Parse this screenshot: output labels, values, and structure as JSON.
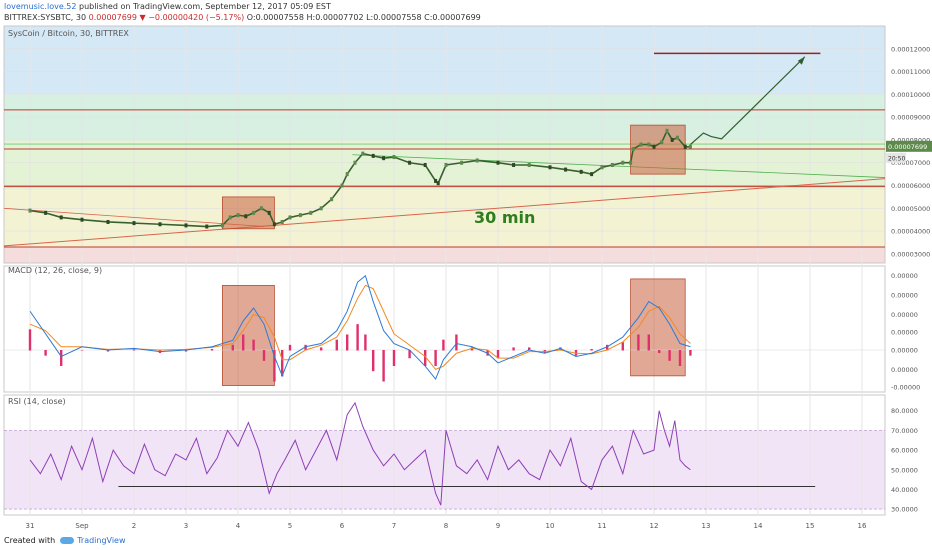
{
  "header": {
    "user": "lovemusic.love.52",
    "published_text": "published on TradingView.com, September 12, 2017 05:09 EST",
    "symbol": "BITTREX:SYSBTC, 30",
    "last": "0.00007699",
    "change": "▼ −0.00000420 (−5.17%)",
    "ohlc": "O:0.00007558 H:0.00007702 L:0.00007558 C:0.00007699"
  },
  "footer": {
    "created_with": "Created with",
    "brand": "TradingView"
  },
  "colors": {
    "up_candle": "#5b8a4a",
    "price_line": "#3a5f2f",
    "macd": "#2e7bd6",
    "signal": "#f08a24",
    "hist": "#e0306c",
    "rsi": "#8e3fb5",
    "box": "#c9613f",
    "level": "#c0392b"
  },
  "chart_data": [
    {
      "type": "line",
      "title": "SysCoin / Bitcoin, 30, BITTREX",
      "annotation": "30 min",
      "x_ticks": [
        "31",
        "Sep",
        "2",
        "3",
        "4",
        "5",
        "6",
        "7",
        "8",
        "9",
        "10",
        "11",
        "12",
        "13",
        "14",
        "15",
        "16"
      ],
      "y_ticks": [
        "0.00012000",
        "0.00011000",
        "0.00010000",
        "0.00009000",
        "0.00008000",
        "0.00007000",
        "0.00006000",
        "0.00005000",
        "0.00004000",
        "0.00003000"
      ],
      "current_price": "0.00007699",
      "countdown": "20:50",
      "ylim": [
        2.6e-05,
        0.00013
      ],
      "x": [
        0,
        0.3,
        0.6,
        1,
        1.5,
        2,
        2.5,
        3,
        3.4,
        3.7,
        3.85,
        4,
        4.15,
        4.3,
        4.45,
        4.6,
        4.7,
        4.85,
        5,
        5.2,
        5.4,
        5.6,
        5.8,
        6,
        6.1,
        6.25,
        6.4,
        6.6,
        6.8,
        7,
        7.3,
        7.6,
        7.8,
        7.85,
        8,
        8.3,
        8.6,
        9,
        9.3,
        9.6,
        10,
        10.3,
        10.6,
        10.8,
        11,
        11.2,
        11.4,
        11.55,
        11.6,
        11.75,
        11.9,
        12,
        12.15,
        12.25,
        12.35,
        12.45,
        12.6,
        12.7
      ],
      "values": [
        4.9e-05,
        4.8e-05,
        4.6e-05,
        4.5e-05,
        4.4e-05,
        4.35e-05,
        4.3e-05,
        4.25e-05,
        4.2e-05,
        4.25e-05,
        4.6e-05,
        4.7e-05,
        4.65e-05,
        4.8e-05,
        5e-05,
        4.8e-05,
        4.3e-05,
        4.4e-05,
        4.6e-05,
        4.7e-05,
        4.8e-05,
        5e-05,
        5.4e-05,
        6e-05,
        6.5e-05,
        7e-05,
        7.4e-05,
        7.3e-05,
        7.2e-05,
        7.25e-05,
        7e-05,
        6.9e-05,
        6.2e-05,
        6.1e-05,
        6.9e-05,
        7e-05,
        7.1e-05,
        7e-05,
        6.9e-05,
        6.9e-05,
        6.8e-05,
        6.7e-05,
        6.6e-05,
        6.5e-05,
        6.8e-05,
        6.9e-05,
        7e-05,
        7e-05,
        7.6e-05,
        7.8e-05,
        7.8e-05,
        7.7e-05,
        7.9e-05,
        8.4e-05,
        8e-05,
        8.1e-05,
        7.7e-05,
        7.7e-05
      ],
      "levels": [
        9.32e-05,
        7.6e-05,
        5.95e-05,
        3.3e-05
      ],
      "target": 0.000118
    },
    {
      "type": "line",
      "title": "MACD (12, 26, close, 9)",
      "y_ticks": [
        "0.00000",
        "0.00000",
        "0.00000",
        "0.00000",
        "0.00000",
        "0.00000",
        "-0.00000"
      ],
      "ylim": [
        -1.3,
        2.6
      ],
      "x": [
        0,
        0.3,
        0.6,
        1,
        1.5,
        2,
        2.5,
        3,
        3.5,
        3.9,
        4.1,
        4.3,
        4.5,
        4.7,
        4.85,
        5,
        5.3,
        5.6,
        5.9,
        6.1,
        6.3,
        6.45,
        6.6,
        6.8,
        7,
        7.3,
        7.6,
        7.8,
        7.95,
        8.2,
        8.5,
        8.8,
        9,
        9.3,
        9.6,
        9.9,
        10.2,
        10.5,
        10.8,
        11.1,
        11.4,
        11.7,
        11.9,
        12.1,
        12.3,
        12.5,
        12.7
      ],
      "series": [
        {
          "name": "",
          "values": [
            1.2,
            0.5,
            -0.2,
            0.1,
            0,
            0.05,
            -0.05,
            0,
            0.1,
            0.3,
            0.9,
            1.3,
            0.8,
            -0.2,
            -0.8,
            -0.2,
            0.1,
            0.2,
            0.6,
            1.2,
            2.1,
            2.3,
            1.5,
            0.6,
            0.2,
            0,
            -0.5,
            -0.9,
            -0.3,
            0.2,
            0.1,
            -0.1,
            -0.4,
            -0.2,
            0,
            -0.1,
            0.05,
            -0.2,
            -0.1,
            0.1,
            0.4,
            1.0,
            1.5,
            1.3,
            0.8,
            0.2,
            0.1
          ]
        },
        {
          "name": "",
          "values": [
            0.8,
            0.6,
            0.1,
            0.1,
            0.02,
            0.04,
            0,
            0.02,
            0.08,
            0.2,
            0.6,
            1.1,
            1.0,
            0.4,
            -0.3,
            -0.3,
            0,
            0.15,
            0.4,
            0.9,
            1.6,
            2.0,
            1.9,
            1.2,
            0.5,
            0.15,
            -0.2,
            -0.6,
            -0.5,
            -0.1,
            0.05,
            0,
            -0.25,
            -0.25,
            -0.05,
            -0.05,
            0,
            -0.1,
            -0.12,
            0,
            0.25,
            0.7,
            1.2,
            1.35,
            1.0,
            0.5,
            0.2
          ]
        }
      ]
    },
    {
      "type": "line",
      "title": "RSI (14, close)",
      "y_ticks": [
        "80.0000",
        "70.0000",
        "60.0000",
        "50.0000",
        "40.0000",
        "30.0000"
      ],
      "ylim": [
        27,
        88
      ],
      "band": [
        30,
        70
      ],
      "support": 41.5,
      "x": [
        0,
        0.2,
        0.4,
        0.6,
        0.8,
        1,
        1.2,
        1.4,
        1.6,
        1.8,
        2,
        2.2,
        2.4,
        2.6,
        2.8,
        3,
        3.2,
        3.4,
        3.6,
        3.8,
        4,
        4.2,
        4.4,
        4.6,
        4.75,
        4.9,
        5.1,
        5.3,
        5.5,
        5.7,
        5.9,
        6.1,
        6.25,
        6.4,
        6.6,
        6.8,
        7,
        7.2,
        7.4,
        7.6,
        7.8,
        7.9,
        8,
        8.2,
        8.4,
        8.6,
        8.8,
        9,
        9.2,
        9.4,
        9.6,
        9.8,
        10,
        10.2,
        10.4,
        10.6,
        10.8,
        11,
        11.2,
        11.4,
        11.6,
        11.8,
        12,
        12.1,
        12.2,
        12.3,
        12.4,
        12.5,
        12.6,
        12.7
      ],
      "values": [
        55,
        48,
        58,
        45,
        62,
        50,
        66,
        44,
        60,
        52,
        48,
        63,
        50,
        47,
        58,
        55,
        66,
        48,
        56,
        70,
        62,
        74,
        60,
        38,
        48,
        55,
        65,
        50,
        60,
        70,
        55,
        78,
        84,
        72,
        60,
        52,
        58,
        50,
        55,
        60,
        38,
        32,
        70,
        52,
        48,
        55,
        45,
        62,
        50,
        55,
        48,
        45,
        60,
        52,
        66,
        44,
        40,
        55,
        62,
        48,
        70,
        58,
        60,
        80,
        70,
        62,
        75,
        55,
        52,
        50
      ]
    }
  ]
}
